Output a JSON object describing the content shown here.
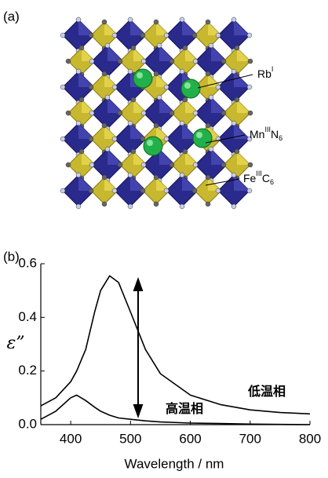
{
  "panel_a": {
    "label": "(a)",
    "annotations": [
      {
        "base": "Rb",
        "sup": "I"
      },
      {
        "base": "Mn",
        "sup": "III",
        "base2": "N",
        "sub": "6"
      },
      {
        "base": "Fe",
        "sup": "III",
        "base2": "C",
        "sub": "6"
      }
    ]
  },
  "chart_data": {
    "type": "line",
    "panel_label": "(b)",
    "x_label": "Wavelength / nm",
    "y_label": "ε”",
    "x": [
      350,
      375,
      400,
      410,
      425,
      440,
      450,
      465,
      480,
      500,
      525,
      550,
      600,
      650,
      700,
      750,
      800
    ],
    "series": [
      {
        "name": "低温相",
        "color": "#000000",
        "values": [
          0.07,
          0.1,
          0.16,
          0.2,
          0.28,
          0.42,
          0.5,
          0.555,
          0.53,
          0.42,
          0.28,
          0.19,
          0.11,
          0.075,
          0.055,
          0.045,
          0.04
        ]
      },
      {
        "name": "高温相",
        "color": "#000000",
        "values": [
          0.02,
          0.05,
          0.1,
          0.11,
          0.09,
          0.065,
          0.05,
          0.035,
          0.025,
          0.02,
          0.014,
          0.01,
          0.006,
          0.004,
          0.002,
          0.001,
          0
        ]
      }
    ],
    "xlim": [
      350,
      800
    ],
    "xticks": [
      400,
      500,
      600,
      700,
      800
    ],
    "ylim": [
      0,
      0.6
    ],
    "yticks": [
      {
        "value": 0,
        "label": "0.0"
      },
      0.2,
      0.4,
      0.6
    ]
  }
}
